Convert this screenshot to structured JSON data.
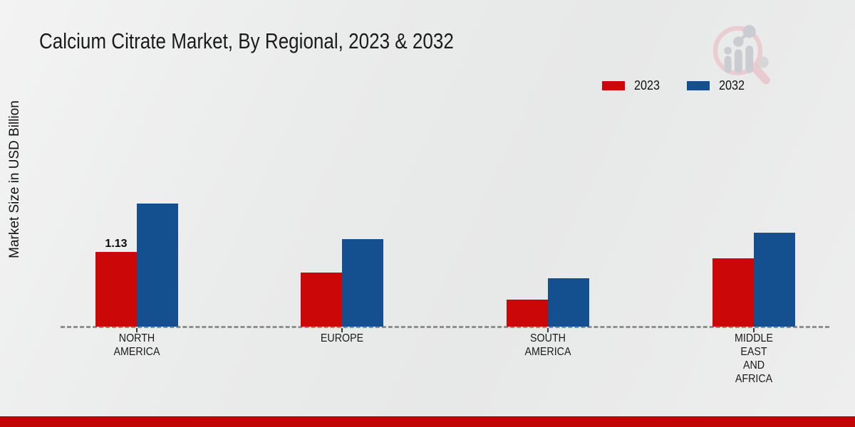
{
  "page": {
    "background_color": "#eaebeb",
    "bottom_strip_color": "#c10404",
    "baseline_color": "#8f8f8f",
    "logo_icon": "magnifier-bar-chart-logo"
  },
  "chart_data": {
    "type": "bar",
    "title": "Calcium Citrate Market, By Regional, 2023 & 2032",
    "ylabel": "Market Size in USD Billion",
    "xlabel": "",
    "categories": [
      "NORTH\nAMERICA",
      "EUROPE",
      "SOUTH\nAMERICA",
      "MIDDLE\nEAST\nAND\nAFRICA"
    ],
    "series": [
      {
        "name": "2023",
        "color": "#cc0707",
        "values": [
          1.13,
          0.82,
          0.41,
          1.03
        ]
      },
      {
        "name": "2032",
        "color": "#14508f",
        "values": [
          1.86,
          1.32,
          0.73,
          1.42
        ]
      }
    ],
    "shown_value_label": {
      "series_index": 0,
      "category_index": 0,
      "text": "1.13"
    },
    "ylim": [
      0,
      2
    ],
    "grid": false,
    "legend_position": "top-right",
    "baseline_style": "dashed"
  }
}
